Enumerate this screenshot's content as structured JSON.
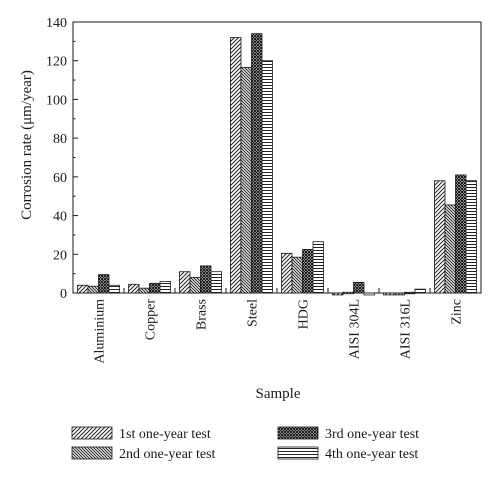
{
  "chart_data": {
    "type": "bar",
    "xlabel": "Sample",
    "ylabel": "Corrosion rate (μm/year)",
    "ylim": [
      0,
      140
    ],
    "yticks": [
      0,
      20,
      40,
      60,
      80,
      100,
      120,
      140
    ],
    "grid": false,
    "legend_position": "bottom",
    "categories": [
      "Aluminium",
      "Copper",
      "Brass",
      "Steel",
      "HDG",
      "AISI 304L",
      "AISI 316L",
      "Zinc"
    ],
    "series": [
      {
        "name": "1st one-year test",
        "pattern": "diagonal-hatch",
        "values": [
          4,
          4.5,
          11,
          132,
          20.5,
          -1,
          -1,
          58
        ]
      },
      {
        "name": "2nd one-year test",
        "pattern": "dense-diagonal-hatch",
        "values": [
          3.5,
          2.5,
          8,
          116.5,
          18.5,
          0,
          -1,
          45.5
        ]
      },
      {
        "name": "3rd one-year test",
        "pattern": "crosshatch",
        "values": [
          9.5,
          5,
          14,
          134,
          22.5,
          5.5,
          0,
          61
        ]
      },
      {
        "name": "4th one-year test",
        "pattern": "horizontal-lines",
        "values": [
          4,
          6,
          11,
          120,
          26.5,
          -1,
          2,
          58
        ]
      }
    ]
  }
}
